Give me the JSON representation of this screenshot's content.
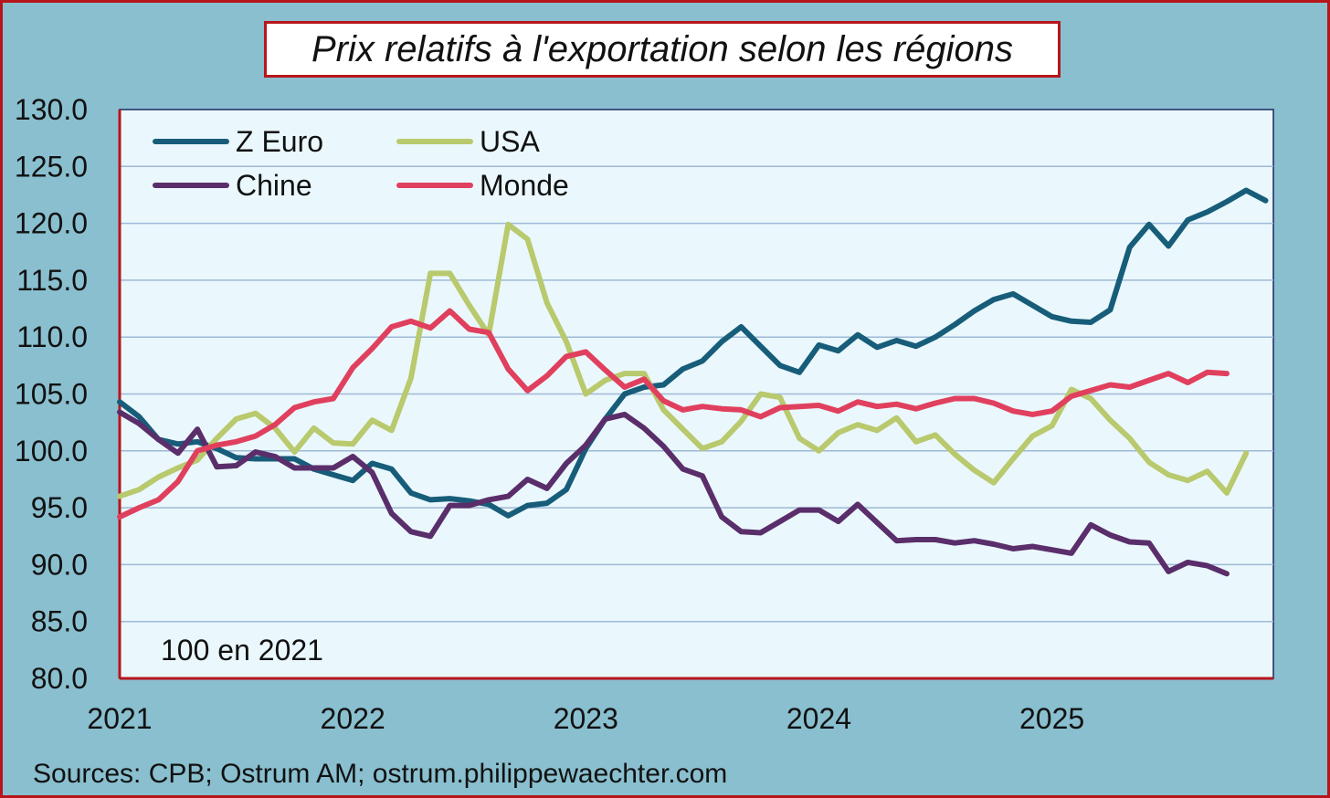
{
  "source": "Sources: CPB; Ostrum AM; ostrum.philippewaechter.com",
  "chart_data": {
    "type": "line",
    "title": "Prix relatifs à l'exportation selon les régions",
    "annotation": "100 en 2021",
    "ylim": [
      80,
      130
    ],
    "yticks": [
      "80.0",
      "85.0",
      "90.0",
      "95.0",
      "100.0",
      "105.0",
      "110.0",
      "115.0",
      "120.0",
      "125.0",
      "130.0"
    ],
    "xticks": [
      "2021",
      "2022",
      "2023",
      "2024",
      "2025"
    ],
    "xlim": [
      2021.0,
      2025.95
    ],
    "x_start": 2021.0,
    "x_step_months": 1,
    "grid": true,
    "legend_placement": "top-left",
    "series": [
      {
        "name": "Z Euro",
        "color": "#175d79",
        "values": [
          104.3,
          103.0,
          101.0,
          100.6,
          100.8,
          100.2,
          99.4,
          99.3,
          99.3,
          99.3,
          98.4,
          97.9,
          97.4,
          98.9,
          98.4,
          96.3,
          95.7,
          95.8,
          95.6,
          95.3,
          94.3,
          95.2,
          95.4,
          96.6,
          100.2,
          102.8,
          105.0,
          105.6,
          105.8,
          107.2,
          107.9,
          109.6,
          110.9,
          109.2,
          107.5,
          106.9,
          109.3,
          108.8,
          110.2,
          109.1,
          109.7,
          109.2,
          110.0,
          111.1,
          112.3,
          113.3,
          113.8,
          112.8,
          111.8,
          111.4,
          111.3,
          112.4,
          117.9,
          119.9,
          118.0,
          120.3,
          121.0,
          121.9,
          122.9,
          122.0
        ]
      },
      {
        "name": "USA",
        "color": "#b9c96d",
        "values": [
          96.0,
          96.6,
          97.7,
          98.5,
          99.2,
          101.1,
          102.8,
          103.3,
          102.0,
          99.9,
          102.0,
          100.7,
          100.6,
          102.7,
          101.8,
          106.4,
          115.6,
          115.6,
          112.8,
          110.2,
          119.9,
          118.6,
          113.0,
          109.6,
          105.0,
          106.2,
          106.8,
          106.8,
          103.6,
          101.9,
          100.2,
          100.8,
          102.6,
          105.0,
          104.7,
          101.1,
          100.0,
          101.6,
          102.3,
          101.8,
          102.9,
          100.8,
          101.4,
          99.7,
          98.3,
          97.2,
          99.3,
          101.3,
          102.2,
          105.4,
          104.6,
          102.7,
          101.1,
          99.0,
          97.9,
          97.4,
          98.2,
          96.3,
          99.8
        ]
      },
      {
        "name": "Chine",
        "color": "#5a2e6a",
        "values": [
          103.4,
          102.4,
          101.0,
          99.8,
          101.9,
          98.6,
          98.7,
          99.9,
          99.5,
          98.5,
          98.5,
          98.5,
          99.5,
          98.1,
          94.5,
          92.9,
          92.5,
          95.2,
          95.2,
          95.7,
          96.0,
          97.5,
          96.7,
          98.9,
          100.5,
          102.8,
          103.2,
          102.0,
          100.4,
          98.4,
          97.8,
          94.2,
          92.9,
          92.8,
          93.8,
          94.8,
          94.8,
          93.8,
          95.3,
          93.7,
          92.1,
          92.2,
          92.2,
          91.9,
          92.1,
          91.8,
          91.4,
          91.6,
          91.3,
          91.0,
          93.5,
          92.6,
          92.0,
          91.9,
          89.4,
          90.2,
          89.9,
          89.2
        ]
      },
      {
        "name": "Monde",
        "color": "#e0405e",
        "values": [
          94.2,
          95.0,
          95.7,
          97.3,
          100.0,
          100.5,
          100.8,
          101.3,
          102.3,
          103.8,
          104.3,
          104.6,
          107.3,
          109.0,
          110.9,
          111.4,
          110.8,
          112.3,
          110.7,
          110.4,
          107.2,
          105.3,
          106.6,
          108.3,
          108.7,
          107.1,
          105.6,
          106.3,
          104.4,
          103.6,
          103.9,
          103.7,
          103.6,
          103.0,
          103.8,
          103.9,
          104.0,
          103.5,
          104.3,
          103.9,
          104.1,
          103.7,
          104.2,
          104.6,
          104.6,
          104.2,
          103.5,
          103.2,
          103.5,
          104.8,
          105.3,
          105.8,
          105.6,
          106.2,
          106.8,
          106.0,
          106.9,
          106.8
        ]
      }
    ]
  }
}
